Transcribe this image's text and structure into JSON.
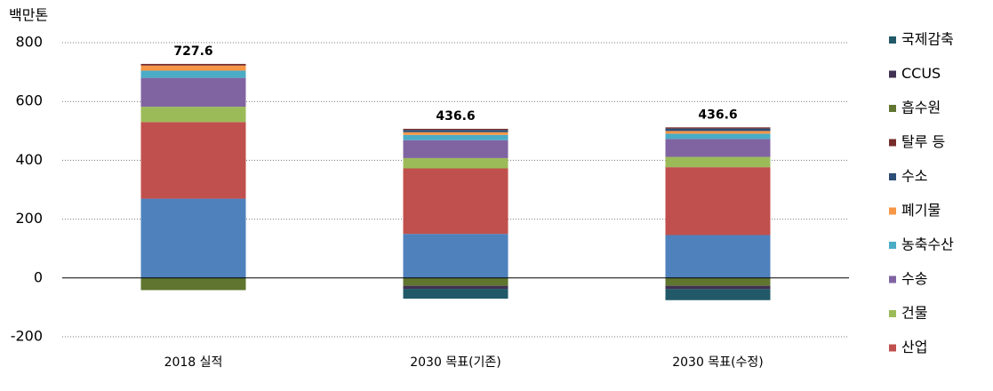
{
  "chart_data": {
    "type": "stacked_bar",
    "y_label": "백만톤",
    "categories": [
      "2018 실적",
      "2030 목표(기존)",
      "2030 목표(수정)"
    ],
    "series": [
      {
        "color": "#4f81bd",
        "values": [
          269.6,
          149.9,
          145.9
        ]
      },
      {
        "name": "산업",
        "color": "#c0504d",
        "values": [
          260.5,
          222.6,
          230.7
        ]
      },
      {
        "name": "건물",
        "color": "#9bbb59",
        "values": [
          52.1,
          35.0,
          35.0
        ]
      },
      {
        "name": "수송",
        "color": "#8064a2",
        "values": [
          98.1,
          61.0,
          61.0
        ]
      },
      {
        "name": "농축수산",
        "color": "#4bacc6",
        "values": [
          24.7,
          18.0,
          18.0
        ]
      },
      {
        "name": "폐기물",
        "color": "#f79646",
        "values": [
          17.1,
          9.1,
          9.1
        ]
      },
      {
        "name": "수소",
        "color": "#2c4d75",
        "values": [
          0,
          7.6,
          8.4
        ]
      },
      {
        "name": "탈루 등",
        "color": "#772c2a",
        "values": [
          5.6,
          3.9,
          3.9
        ]
      },
      {
        "name": "흡수원",
        "color": "#5f7530",
        "values": [
          -41.3,
          -26.7,
          -26.7
        ]
      },
      {
        "name": "CCUS",
        "color": "#403152",
        "values": [
          0,
          -10.3,
          -11.2
        ]
      },
      {
        "name": "국제감축",
        "color": "#215968",
        "values": [
          0,
          -33.5,
          -37.5
        ]
      }
    ],
    "totals": [
      727.6,
      436.6,
      436.6
    ],
    "ylim": [
      -200,
      800
    ],
    "yticks": [
      -200,
      0,
      200,
      400,
      600,
      800
    ],
    "grid": true
  }
}
